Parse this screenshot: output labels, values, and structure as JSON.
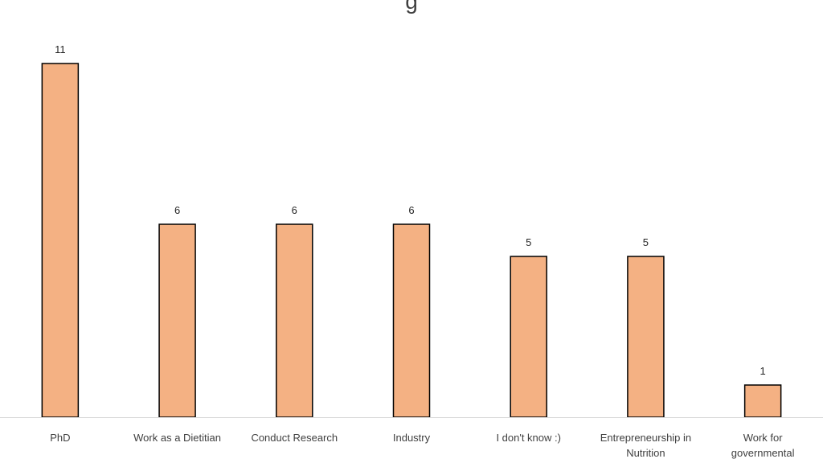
{
  "chart_data": {
    "type": "bar",
    "title": "g",
    "categories": [
      [
        "PhD"
      ],
      [
        "Work as a Dietitian"
      ],
      [
        "Conduct Research"
      ],
      [
        "Industry"
      ],
      [
        "I don't know :)"
      ],
      [
        "Entrepreneurship in",
        "Nutrition"
      ],
      [
        "Work for",
        "governmental"
      ]
    ],
    "values": [
      11,
      6,
      6,
      6,
      5,
      5,
      1
    ],
    "ylim": [
      0,
      11
    ],
    "xlabel": "",
    "ylabel": "",
    "grid": false,
    "data_labels": true,
    "colors": {
      "bar_fill": "#F4B183",
      "bar_stroke": "#000000",
      "axis": "#D9D9D9"
    }
  }
}
